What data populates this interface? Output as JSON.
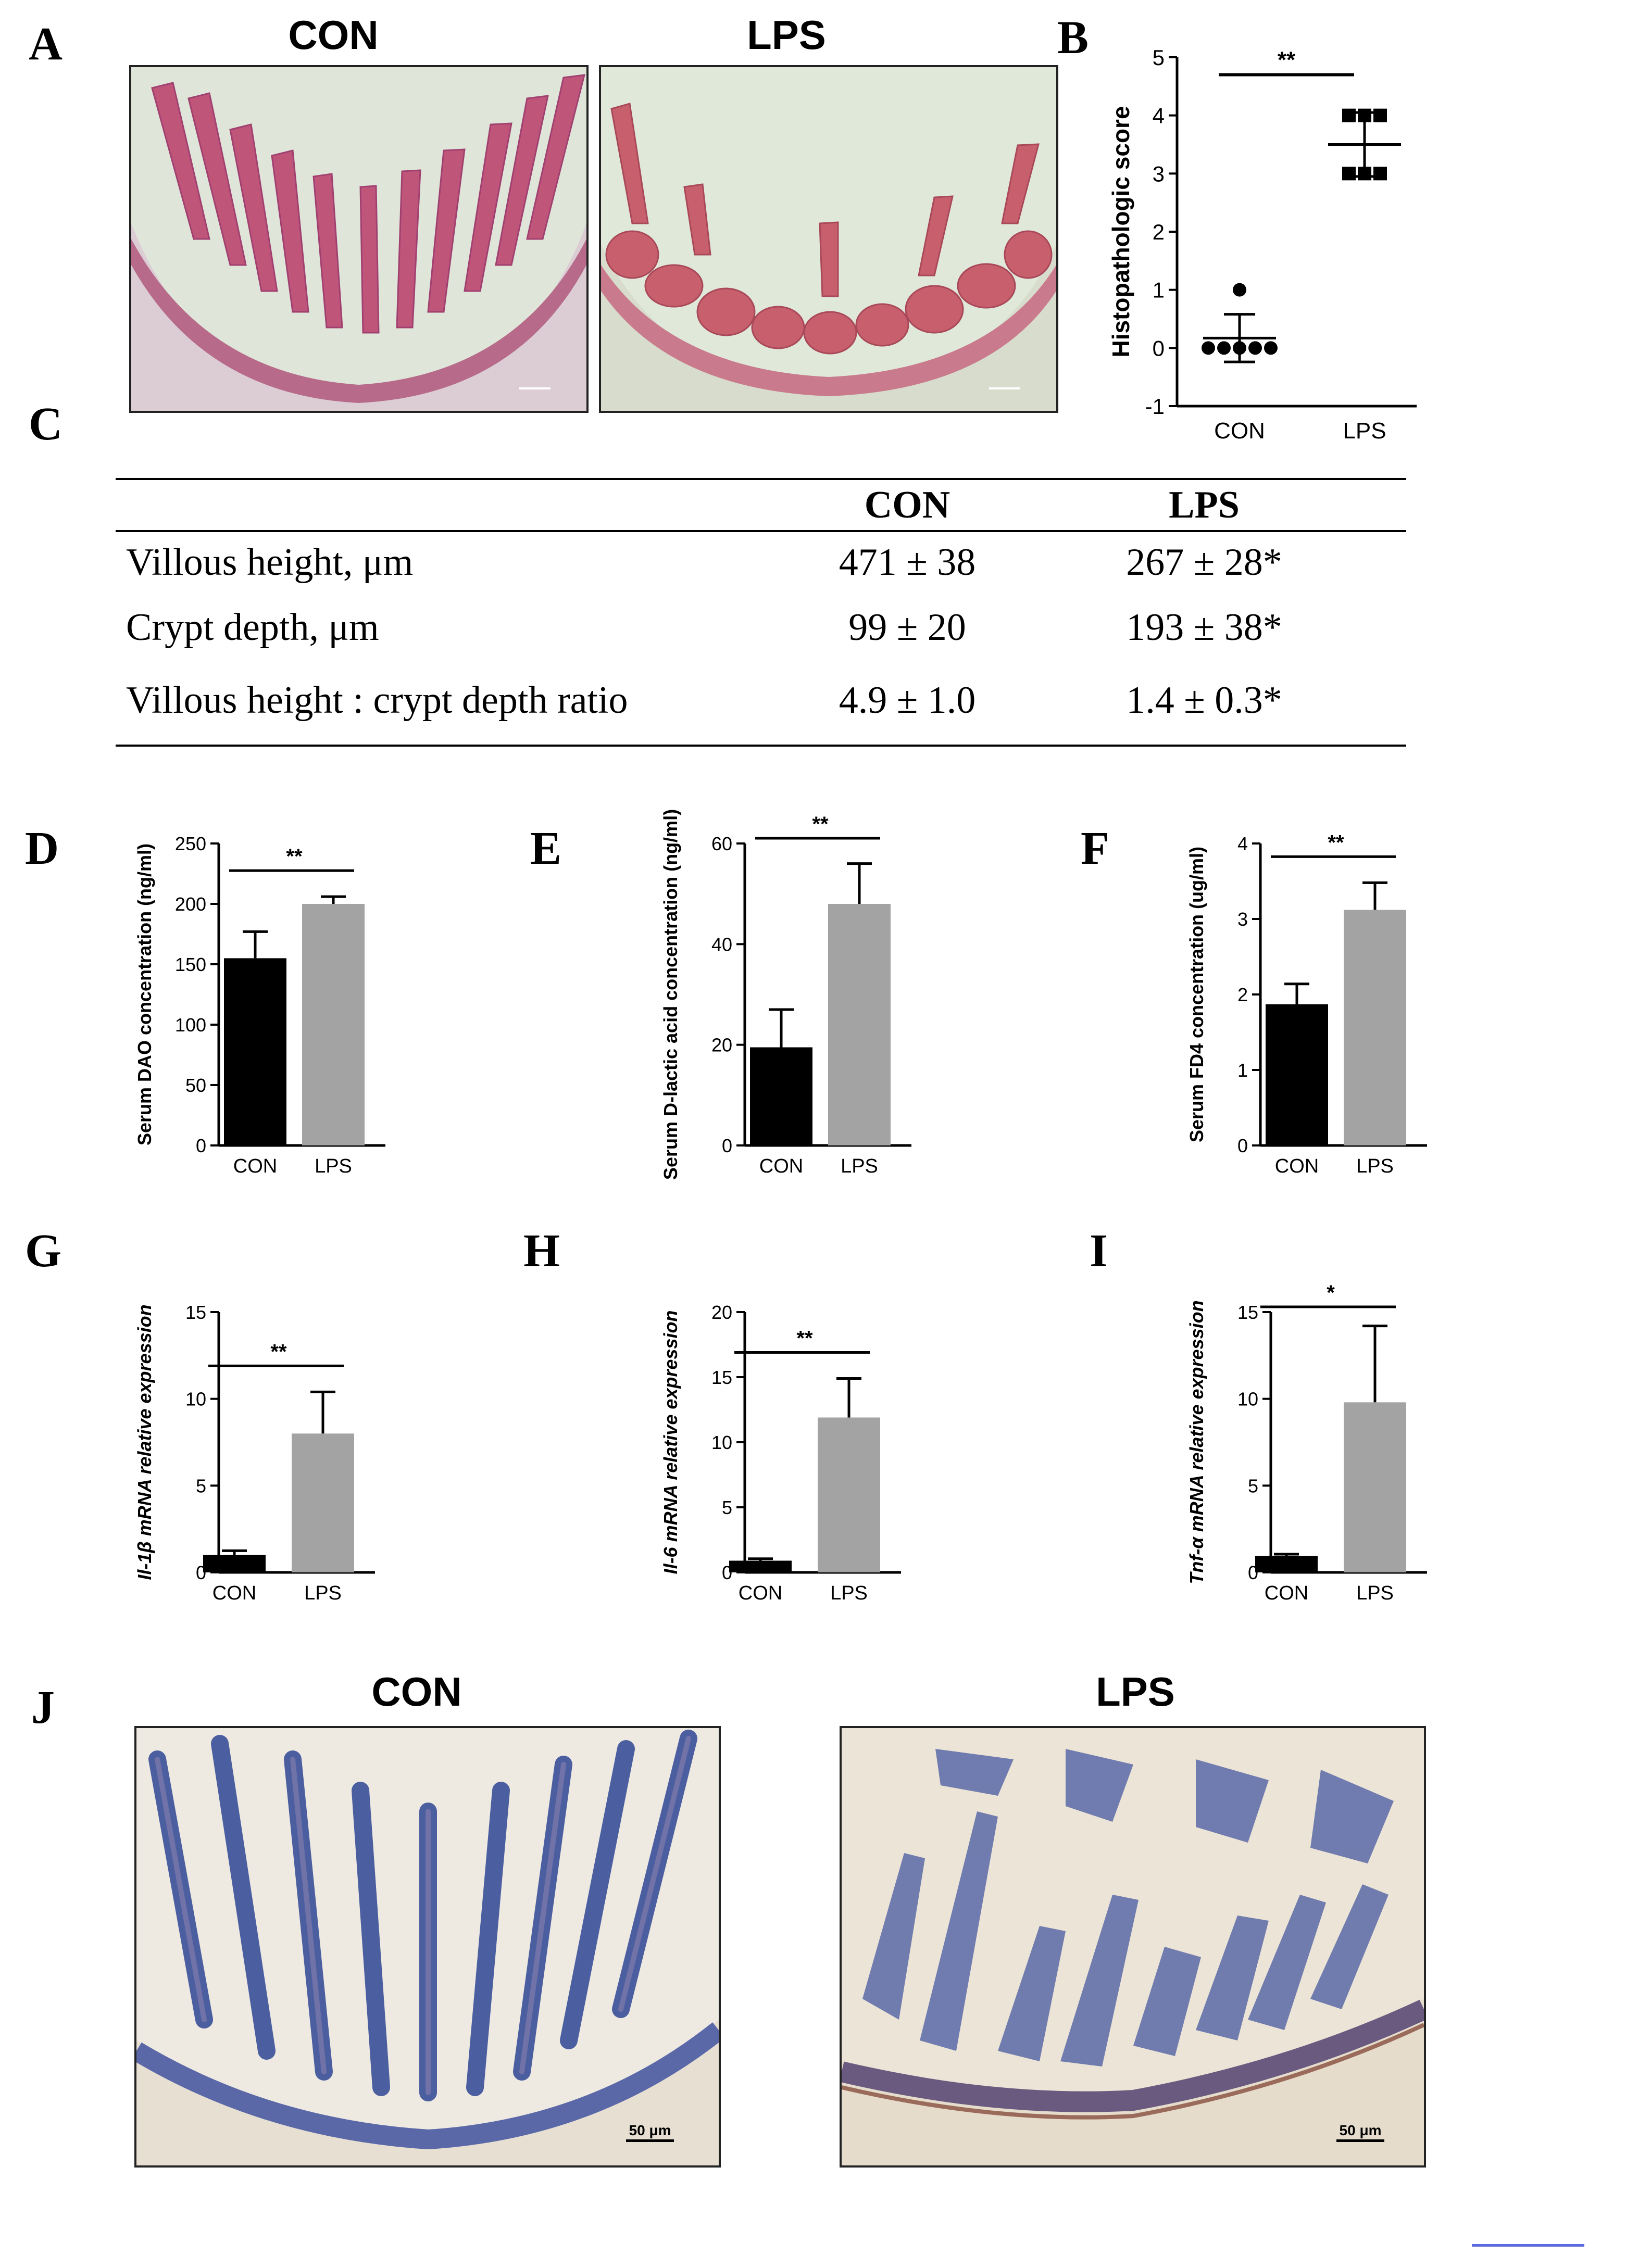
{
  "panels": {
    "A": {
      "letter": "A",
      "left_title": "CON",
      "right_title": "LPS"
    },
    "B": {
      "letter": "B"
    },
    "C": {
      "letter": "C"
    },
    "D": {
      "letter": "D"
    },
    "E": {
      "letter": "E"
    },
    "F": {
      "letter": "F"
    },
    "G": {
      "letter": "G"
    },
    "H": {
      "letter": "H"
    },
    "I": {
      "letter": "I"
    },
    "J": {
      "letter": "J",
      "left_title": "CON",
      "right_title": "LPS",
      "left_scale": "50 μm",
      "right_scale": "50 μm"
    }
  },
  "table": {
    "columns": [
      "",
      "CON",
      "LPS"
    ],
    "rows": [
      {
        "label": "Villous height, μm",
        "con": "471 ± 38",
        "lps": "267 ± 28*"
      },
      {
        "label": "Crypt depth, μm",
        "con": "99 ± 20",
        "lps": "193 ± 38*"
      },
      {
        "label": "Villous height : crypt depth ratio",
        "con": "4.9 ± 1.0",
        "lps": "1.4 ± 0.3*"
      }
    ]
  },
  "colors": {
    "con_bar": "#000000",
    "lps_bar": "#a3a3a3",
    "he_stain": "#c0505e",
    "ihc_stain": "#4b5fa0"
  },
  "chart_data": [
    {
      "id": "B",
      "type": "scatter",
      "ylabel": "Histopathologic score",
      "categories": [
        "CON",
        "LPS"
      ],
      "ylim": [
        -1,
        5
      ],
      "yticks": [
        -1,
        0,
        1,
        2,
        3,
        4,
        5
      ],
      "series": [
        {
          "category": "CON",
          "points": [
            1,
            0,
            0,
            0,
            0,
            0
          ],
          "mean": 0.17,
          "sd": 0.41
        },
        {
          "category": "LPS",
          "points": [
            4,
            4,
            4,
            3,
            3,
            3
          ],
          "mean": 3.5,
          "sd": 0.55
        }
      ],
      "significance": "**"
    },
    {
      "id": "D",
      "type": "bar",
      "ylabel": "Serum DAO concentration (ng/ml)",
      "categories": [
        "CON",
        "LPS"
      ],
      "values": [
        155,
        200
      ],
      "errors": [
        22,
        6
      ],
      "ylim": [
        0,
        250
      ],
      "yticks": [
        0,
        50,
        100,
        150,
        200,
        250
      ],
      "significance": "**"
    },
    {
      "id": "E",
      "type": "bar",
      "ylabel": "Serum D-lactic acid concentration (ng/ml)",
      "categories": [
        "CON",
        "LPS"
      ],
      "values": [
        19.5,
        48
      ],
      "errors": [
        7.5,
        8
      ],
      "ylim": [
        0,
        60
      ],
      "yticks": [
        0,
        20,
        40,
        60
      ],
      "significance": "**"
    },
    {
      "id": "F",
      "type": "bar",
      "ylabel": "Serum FD4 concentration (ug/ml)",
      "categories": [
        "CON",
        "LPS"
      ],
      "values": [
        1.87,
        3.12
      ],
      "errors": [
        0.27,
        0.36
      ],
      "ylim": [
        0,
        4
      ],
      "yticks": [
        0,
        1,
        2,
        3,
        4
      ],
      "significance": "**"
    },
    {
      "id": "G",
      "type": "bar",
      "ylabel": "Il-1β mRNA relative expression",
      "categories": [
        "CON",
        "LPS"
      ],
      "values": [
        1.0,
        8.0
      ],
      "errors": [
        0.25,
        2.4
      ],
      "ylim": [
        0,
        15
      ],
      "yticks": [
        0,
        5,
        10,
        15
      ],
      "significance": "**"
    },
    {
      "id": "H",
      "type": "bar",
      "ylabel": "Il-6 mRNA relative expression",
      "categories": [
        "CON",
        "LPS"
      ],
      "values": [
        0.9,
        11.9
      ],
      "errors": [
        0.15,
        3.0
      ],
      "ylim": [
        0,
        20
      ],
      "yticks": [
        0,
        5,
        10,
        15,
        20
      ],
      "significance": "**"
    },
    {
      "id": "I",
      "type": "bar",
      "ylabel": "Tnf-α mRNA relative expression",
      "categories": [
        "CON",
        "LPS"
      ],
      "values": [
        0.95,
        9.8
      ],
      "errors": [
        0.1,
        4.4
      ],
      "ylim": [
        0,
        15
      ],
      "yticks": [
        0,
        5,
        10,
        15
      ],
      "significance": "*"
    }
  ]
}
